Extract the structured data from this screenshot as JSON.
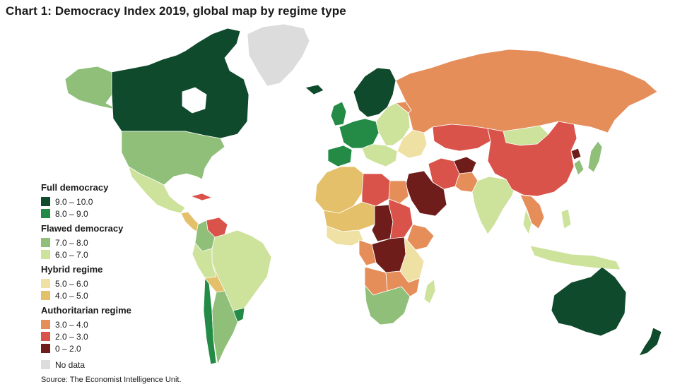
{
  "title": "Chart 1: Democracy Index 2019, global map by regime type",
  "source": "Source: The Economist Intelligence Unit.",
  "colors": {
    "water": "#ffffff",
    "full_90_100": "#0e4a2b",
    "full_80_90": "#238b45",
    "flawed_70_80": "#8fbf78",
    "flawed_60_70": "#cde29a",
    "hybrid_50_60": "#efe0a4",
    "hybrid_40_50": "#e4c06a",
    "auth_30_40": "#e58e5a",
    "auth_20_30": "#d9534a",
    "auth_00_20": "#6e1d1a",
    "no_data": "#dcdcdc"
  },
  "legend": {
    "groups": [
      {
        "title": "Full democracy",
        "items": [
          {
            "label": "9.0 – 10.0",
            "color": "#0e4a2b"
          },
          {
            "label": "8.0 – 9.0",
            "color": "#238b45"
          }
        ]
      },
      {
        "title": "Flawed democracy",
        "items": [
          {
            "label": "7.0 – 8.0",
            "color": "#8fbf78"
          },
          {
            "label": "6.0 – 7.0",
            "color": "#cde29a"
          }
        ]
      },
      {
        "title": "Hybrid regime",
        "items": [
          {
            "label": "5.0 – 6.0",
            "color": "#efe0a4"
          },
          {
            "label": "4.0 – 5.0",
            "color": "#e4c06a"
          }
        ]
      },
      {
        "title": "Authoritarian regime",
        "items": [
          {
            "label": "3.0 – 4.0",
            "color": "#e58e5a"
          },
          {
            "label": "2.0 – 3.0",
            "color": "#d9534a"
          },
          {
            "label": "0 – 2.0",
            "color": "#6e1d1a"
          }
        ]
      }
    ],
    "no_data": {
      "label": "No data",
      "color": "#dcdcdc"
    }
  }
}
